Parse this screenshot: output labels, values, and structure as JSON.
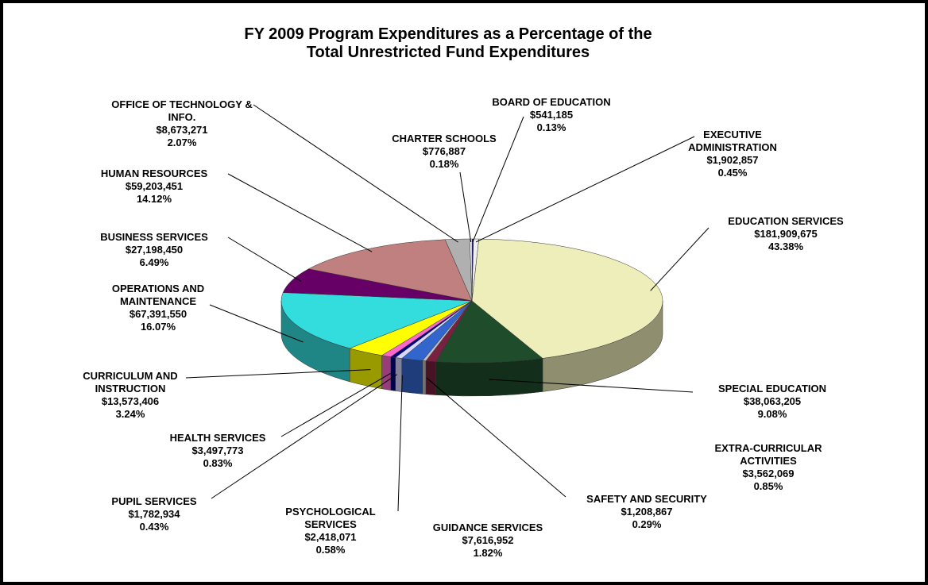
{
  "chart_data": {
    "type": "pie",
    "title": "FY 2009 Program Expenditures as a Percentage of the Total Unrestricted Fund Expenditures",
    "categories": [
      "BOARD OF EDUCATION",
      "EXECUTIVE ADMINISTRATION",
      "EDUCATION SERVICES",
      "SPECIAL EDUCATION",
      "EXTRA-CURRICULAR ACTIVITIES",
      "SAFETY AND SECURITY",
      "GUIDANCE SERVICES",
      "PSYCHOLOGICAL SERVICES",
      "PUPIL SERVICES",
      "HEALTH SERVICES",
      "CURRICULUM AND INSTRUCTION",
      "OPERATIONS AND MAINTENANCE",
      "BUSINESS SERVICES",
      "HUMAN RESOURCES",
      "OFFICE OF TECHNOLOGY & INFO.",
      "CHARTER SCHOOLS"
    ],
    "values": [
      0.13,
      0.45,
      43.38,
      9.08,
      0.85,
      0.29,
      1.82,
      0.58,
      0.43,
      0.83,
      3.24,
      16.07,
      6.49,
      14.12,
      2.07,
      0.18
    ],
    "value_labels": [
      "0.13%",
      "0.45%",
      "43.38%",
      "9.08%",
      "0.85%",
      "0.29%",
      "1.82%",
      "0.58%",
      "0.43%",
      "0.83%",
      "3.24%",
      "16.07%",
      "6.49%",
      "14.12%",
      "2.07%",
      "0.18%"
    ],
    "amounts": [
      {
        "value": 541185,
        "label": "$541,185"
      },
      {
        "value": 1902857,
        "label": "$1,902,857"
      },
      {
        "value": 181909675,
        "label": "$181,909,675"
      },
      {
        "value": 38063205,
        "label": "$38,063,205"
      },
      {
        "value": 3562069,
        "label": "$3,562,069"
      },
      {
        "value": 1208867,
        "label": "$1,208,867"
      },
      {
        "value": 7616952,
        "label": "$7,616,952"
      },
      {
        "value": 2418071,
        "label": "$2,418,071"
      },
      {
        "value": 1782934,
        "label": "$1,782,934"
      },
      {
        "value": 3497773,
        "label": "$3,497,773"
      },
      {
        "value": 13573406,
        "label": "$13,573,406"
      },
      {
        "value": 67391550,
        "label": "$67,391,550"
      },
      {
        "value": 27198450,
        "label": "$27,198,450"
      },
      {
        "value": 59203451,
        "label": "$59,203,451"
      },
      {
        "value": 8673271,
        "label": "$8,673,271"
      },
      {
        "value": 776887,
        "label": "$776,887"
      }
    ],
    "colors": [
      "#1a1a8c",
      "#f0f0f0",
      "#eeeebb",
      "#1f4d2b",
      "#7a2040",
      "#c0c0c0",
      "#3366cc",
      "#d8d8ff",
      "#000080",
      "#ff66cc",
      "#ffff00",
      "#33dddd",
      "#660066",
      "#c08080",
      "#b0b0b0",
      "#ffffff"
    ]
  }
}
